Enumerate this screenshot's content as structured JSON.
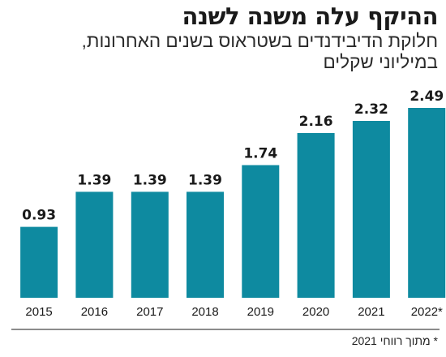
{
  "header": {
    "title": "ההיקף עלה משנה לשנה",
    "subtitle_line1": "חלוקת הדיבידנדים בשטראוס בשנים האחרונות,",
    "subtitle_line2": "במיליוני שקלים"
  },
  "footnote": "* מתוך רווחי 2021",
  "colors": {
    "bar": "#0e8aa0",
    "text": "#1a1a1a",
    "axis": "#1a1a1a"
  },
  "chart_data": {
    "type": "bar",
    "categories": [
      "2015",
      "2016",
      "2017",
      "2018",
      "2019",
      "2020",
      "2021",
      "2022*"
    ],
    "values": [
      0.93,
      1.39,
      1.39,
      1.39,
      1.74,
      2.16,
      2.32,
      2.49
    ],
    "value_labels": [
      "0.93",
      "1.39",
      "1.39",
      "1.39",
      "1.74",
      "2.16",
      "2.32",
      "2.49"
    ],
    "ylim": [
      0,
      2.49
    ],
    "grid": false,
    "legend": "none"
  }
}
